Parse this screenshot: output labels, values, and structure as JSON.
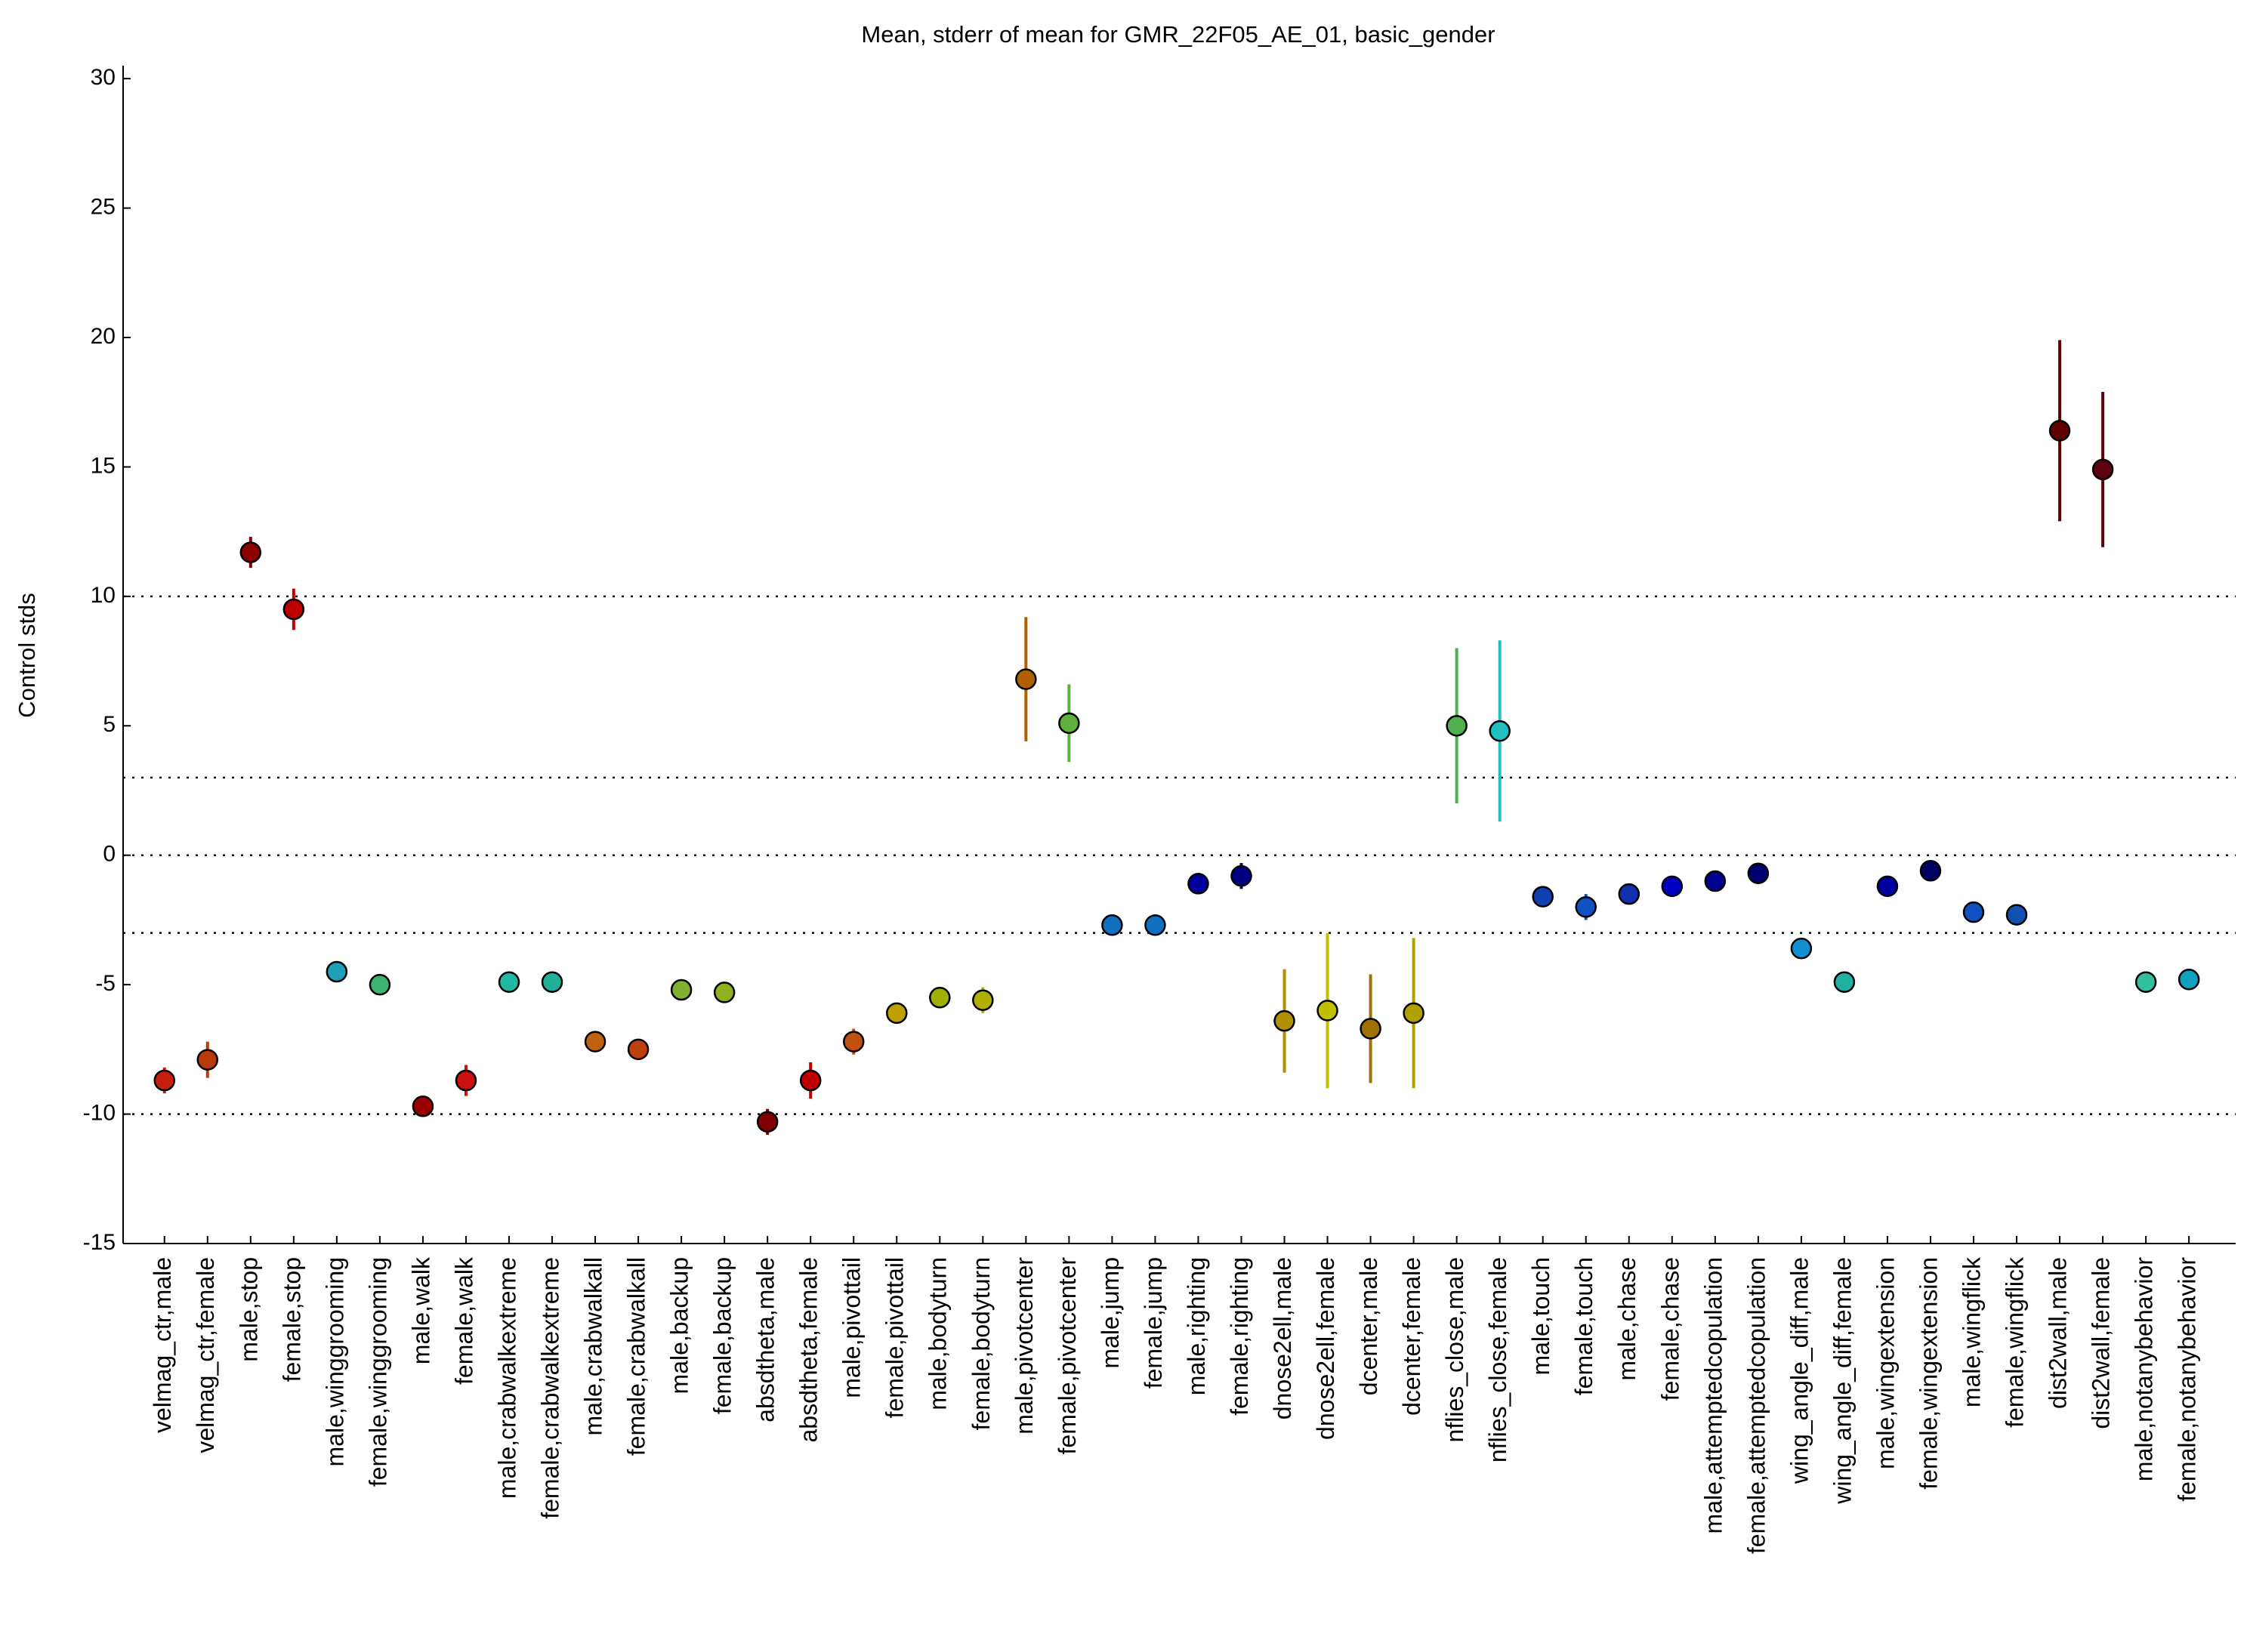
{
  "chart_data": {
    "type": "errorbar",
    "title": "Mean, stderr of mean for GMR_22F05_AE_01, basic_gender",
    "ylabel": "Control stds",
    "categories": [
      "velmag_ctr,male",
      "velmag_ctr,female",
      "male,stop",
      "female,stop",
      "male,winggrooming",
      "female,winggrooming",
      "male,walk",
      "female,walk",
      "male,crabwalkextreme",
      "female,crabwalkextreme",
      "male,crabwalkall",
      "female,crabwalkall",
      "male,backup",
      "female,backup",
      "absdtheta,male",
      "absdtheta,female",
      "male,pivottail",
      "female,pivottail",
      "male,bodyturn",
      "female,bodyturn",
      "male,pivotcenter",
      "female,pivotcenter",
      "male,jump",
      "female,jump",
      "male,righting",
      "female,righting",
      "dnose2ell,male",
      "dnose2ell,female",
      "dcenter,male",
      "dcenter,female",
      "nflies_close,male",
      "nflies_close,female",
      "male,touch",
      "female,touch",
      "male,chase",
      "female,chase",
      "male,attemptedcopulation",
      "female,attemptedcopulation",
      "wing_angle_diff,male",
      "wing_angle_diff,female",
      "male,wingextension",
      "female,wingextension",
      "male,wingflick",
      "female,wingflick",
      "dist2wall,male",
      "dist2wall,female",
      "male,notanybehavior",
      "female,notanybehavior"
    ],
    "values": [
      -8.7,
      -7.9,
      11.7,
      9.5,
      -4.5,
      -5.0,
      -9.7,
      -8.7,
      -4.9,
      -4.9,
      -7.2,
      -7.5,
      -5.2,
      -5.3,
      -10.3,
      -8.7,
      -7.2,
      -6.1,
      -5.5,
      -5.6,
      6.8,
      5.1,
      -2.7,
      -2.7,
      -1.1,
      -0.8,
      -6.4,
      -6.0,
      -6.7,
      -6.1,
      5.0,
      4.8,
      -1.6,
      -2.0,
      -1.5,
      -1.2,
      -1.0,
      -0.7,
      -3.6,
      -4.9,
      -1.2,
      -0.6,
      -2.2,
      -2.3,
      16.4,
      14.9,
      -4.9,
      -4.8
    ],
    "errors": [
      0.5,
      0.7,
      0.6,
      0.8,
      0.3,
      0.3,
      0.4,
      0.6,
      0.2,
      0.2,
      0.4,
      0.4,
      0.3,
      0.3,
      0.5,
      0.7,
      0.5,
      0.4,
      0.4,
      0.5,
      2.4,
      1.5,
      0.2,
      0.2,
      0.3,
      0.5,
      2.0,
      3.0,
      2.1,
      2.9,
      3.0,
      3.5,
      0.3,
      0.5,
      0.2,
      0.1,
      0.2,
      0.2,
      0.2,
      0.2,
      0.1,
      0.2,
      0.2,
      0.2,
      3.5,
      3.0,
      0.2,
      0.3
    ],
    "colors": [
      "#c81e0f",
      "#b83a0a",
      "#8b0000",
      "#c00000",
      "#1fa0b8",
      "#3cb371",
      "#9b0000",
      "#cc1010",
      "#20b8a0",
      "#20b098",
      "#c06010",
      "#c04010",
      "#80b030",
      "#90b020",
      "#800000",
      "#c00000",
      "#c05010",
      "#c0a000",
      "#a0b000",
      "#b0b000",
      "#b06000",
      "#60b040",
      "#1070c0",
      "#1070c0",
      "#0000a0",
      "#000080",
      "#b09000",
      "#c0c000",
      "#a07000",
      "#b0a000",
      "#50b050",
      "#20c0c0",
      "#1040b0",
      "#1050c0",
      "#1030b0",
      "#0000c0",
      "#000090",
      "#000070",
      "#1090d0",
      "#20b0a0",
      "#0000a0",
      "#000060",
      "#1050c0",
      "#1050b0",
      "#600000",
      "#600010",
      "#30c0a0",
      "#10a0c0"
    ],
    "ylim": [
      -15,
      30.5
    ],
    "yticks": [
      -15,
      -10,
      -5,
      0,
      5,
      10,
      15,
      20,
      25,
      30
    ],
    "ref_lines": [
      10,
      3,
      0,
      -3,
      -10
    ]
  }
}
